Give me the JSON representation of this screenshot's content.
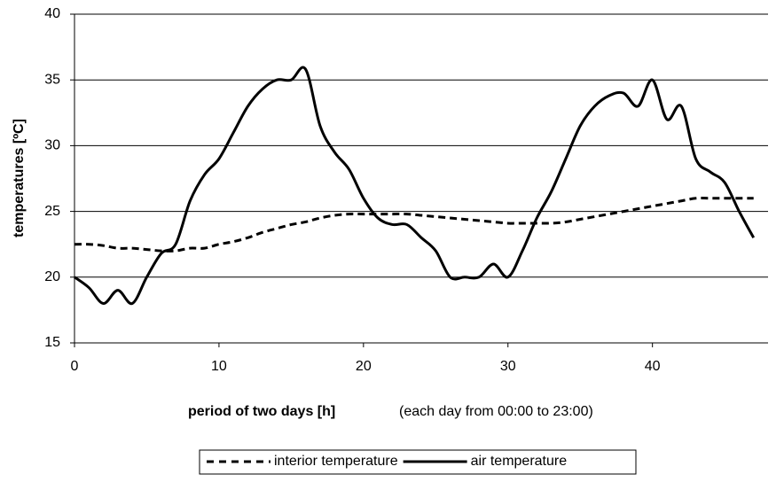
{
  "chart_data": {
    "type": "line",
    "x_label": "period of two days [h]",
    "x_note": "(each day from 00:00 to 23:00)",
    "y_label": "temperatures [ºC]",
    "x": [
      0,
      1,
      2,
      3,
      4,
      5,
      6,
      7,
      8,
      9,
      10,
      11,
      12,
      13,
      14,
      15,
      16,
      17,
      18,
      19,
      20,
      21,
      22,
      23,
      24,
      25,
      26,
      27,
      28,
      29,
      30,
      31,
      32,
      33,
      34,
      35,
      36,
      37,
      38,
      39,
      40,
      41,
      42,
      43,
      44,
      45,
      46,
      47
    ],
    "series": [
      {
        "name": "interior temperature",
        "color": "#000000",
        "dash": true,
        "values": [
          22.5,
          22.5,
          22.4,
          22.2,
          22.2,
          22.1,
          22,
          22,
          22.2,
          22.2,
          22.5,
          22.7,
          23,
          23.4,
          23.7,
          24,
          24.2,
          24.5,
          24.7,
          24.8,
          24.8,
          24.8,
          24.8,
          24.8,
          24.7,
          24.6,
          24.5,
          24.4,
          24.3,
          24.2,
          24.1,
          24.1,
          24.1,
          24.1,
          24.2,
          24.4,
          24.6,
          24.8,
          25,
          25.2,
          25.4,
          25.6,
          25.8,
          26,
          26,
          26,
          26,
          26
        ]
      },
      {
        "name": "air temperature",
        "color": "#000000",
        "dash": false,
        "values": [
          20,
          19.2,
          18,
          19,
          18,
          20,
          21.8,
          22.5,
          25.8,
          27.8,
          29,
          31,
          33,
          34.3,
          35,
          35,
          35.8,
          31.5,
          29.5,
          28.2,
          26,
          24.5,
          24,
          24,
          23,
          22,
          20,
          20,
          20,
          21,
          20,
          22,
          24.5,
          26.5,
          29,
          31.5,
          33,
          33.8,
          34,
          33,
          35,
          32,
          33,
          29,
          28,
          27.2,
          25,
          23
        ]
      }
    ],
    "xlim": [
      0,
      48
    ],
    "xticks": [
      0,
      10,
      20,
      30,
      40
    ],
    "ylim": [
      15,
      40
    ],
    "yticks": [
      15,
      20,
      25,
      30,
      35,
      40
    ],
    "grid": true,
    "legend": "bottom"
  }
}
